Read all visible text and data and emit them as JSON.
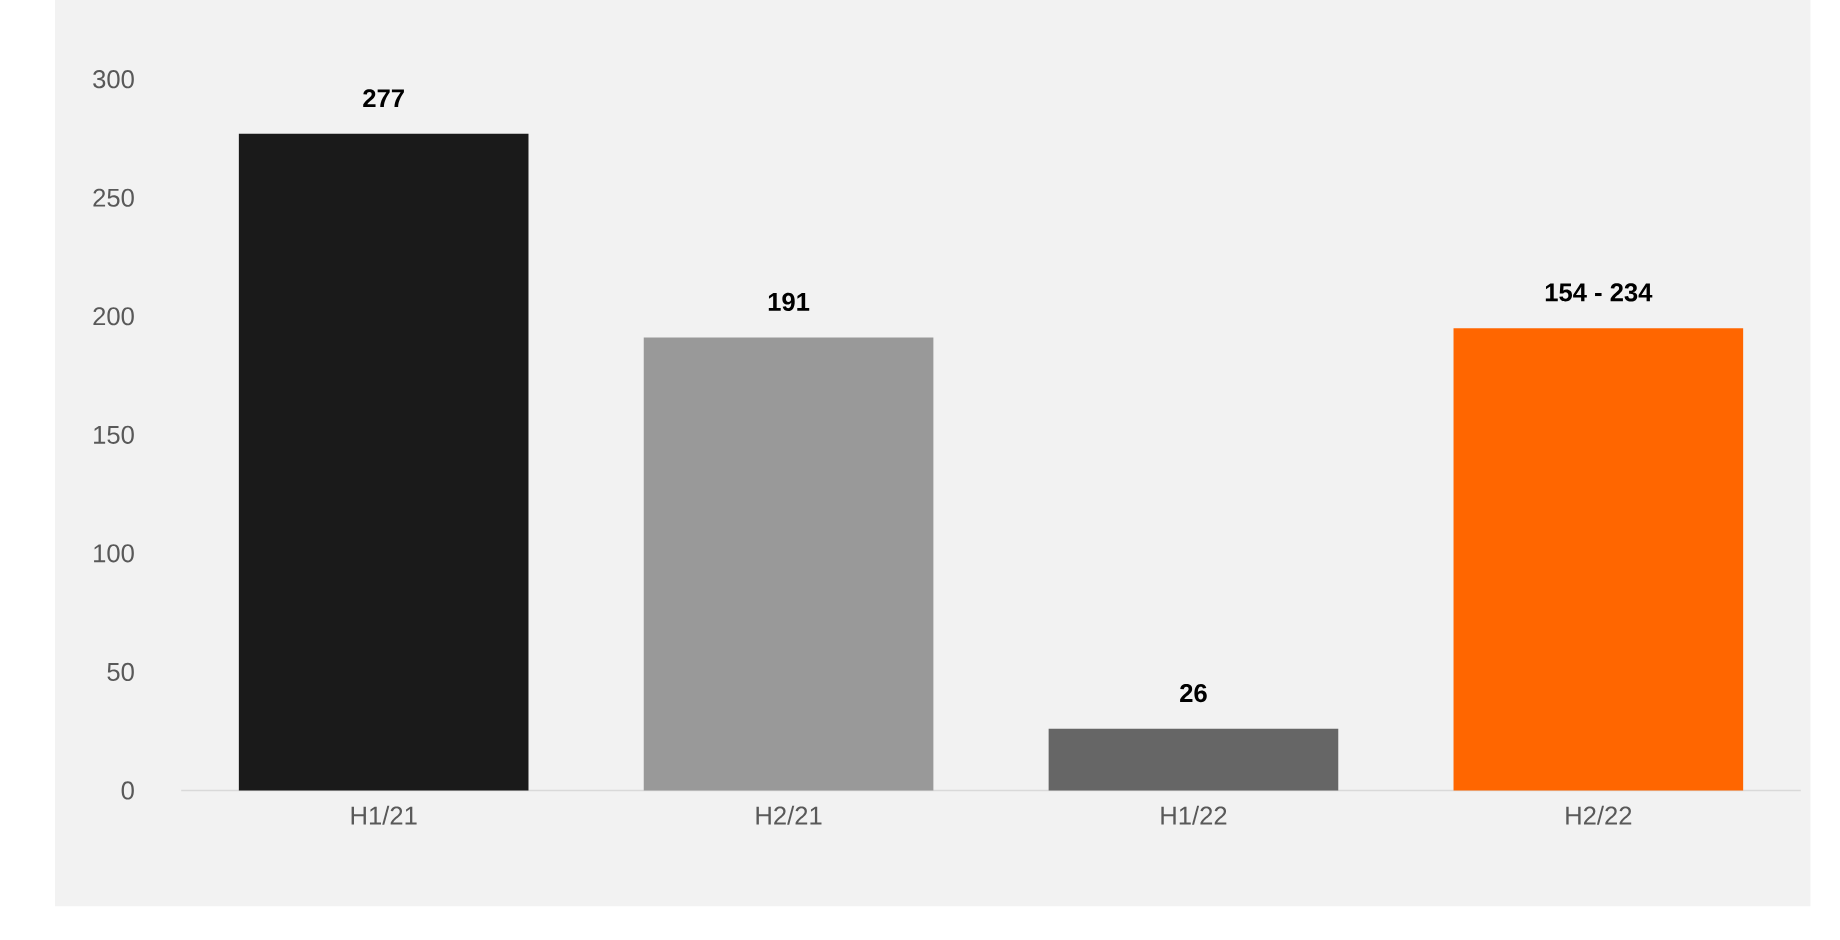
{
  "chart_data": {
    "type": "bar",
    "categories": [
      "H1/21",
      "H2/21",
      "H1/22",
      "H2/22"
    ],
    "values": [
      277,
      191,
      26,
      195
    ],
    "colors": [
      "#1a1a1a",
      "#999999",
      "#666666",
      "#ff6600"
    ],
    "value_labels": [
      "277",
      "191",
      "26",
      null
    ],
    "annotations": [
      {
        "text": "154 - 234",
        "x": "H2/22",
        "y": 195
      }
    ],
    "ylim": [
      0,
      300
    ],
    "yticks": [
      0,
      50,
      100,
      150,
      200,
      250,
      300
    ],
    "grid": false
  }
}
